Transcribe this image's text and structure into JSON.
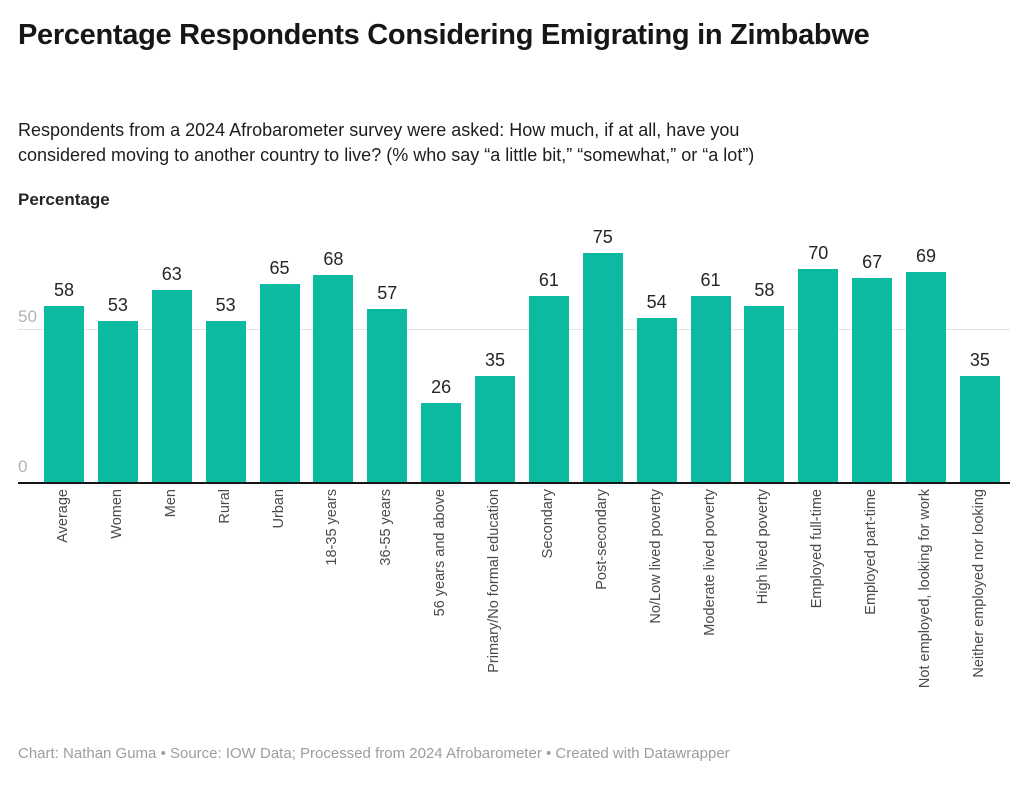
{
  "header": {
    "title": "Percentage Respondents Considering Emigrating in Zimbabwe",
    "subtitle_line1": "Respondents from a 2024 Afrobarometer survey were asked: How much, if at all, have you",
    "subtitle_line2": "considered moving to another country to live? (% who say “a little bit,” “somewhat,” or “a lot”)"
  },
  "chart_data": {
    "type": "bar",
    "title": "Percentage Respondents Considering Emigrating in Zimbabwe",
    "xlabel": "",
    "ylabel": "Percentage",
    "categories": [
      "Average",
      "Women",
      "Men",
      "Rural",
      "Urban",
      "18-35 years",
      "36-55 years",
      "56 years and above",
      "Primary/No formal education",
      "Secondary",
      "Post-secondary",
      "No/Low lived poverty",
      "Moderate lived poverty",
      "High lived poverty",
      "Employed full-time",
      "Employed part-time",
      "Not employed, looking for work",
      "Neither employed nor looking"
    ],
    "values": [
      58,
      53,
      63,
      53,
      65,
      68,
      57,
      26,
      35,
      61,
      75,
      54,
      61,
      58,
      70,
      67,
      69,
      35
    ],
    "ylim": [
      0,
      82
    ],
    "yticks": [
      0,
      50
    ],
    "grid": "horizontal",
    "legend": "none",
    "bar_color": "#0cb9a1"
  },
  "axis": {
    "tick_0": "0",
    "tick_50": "50"
  },
  "footer": {
    "text": "Chart: Nathan Guma • Source: IOW Data; Processed from 2024 Afrobarometer • Created with Datawrapper"
  },
  "colors": {
    "bar": "#0cb9a1",
    "title": "#161616",
    "grid": "#e3e3e3",
    "baseline": "#161616",
    "y_tick_label": "#b3b3b3",
    "value_label": "#262626",
    "category_label": "#4a4a4a",
    "footer": "#9d9d9d"
  }
}
